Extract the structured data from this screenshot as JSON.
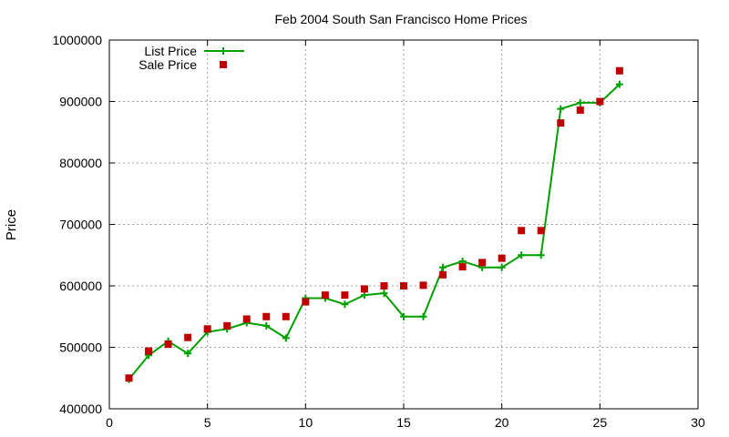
{
  "chart_data": {
    "type": "line",
    "title": "Feb 2004 South San Francisco Home Prices",
    "xlabel": "",
    "ylabel": "Price",
    "xlim": [
      0,
      30
    ],
    "ylim": [
      400000,
      1000000
    ],
    "x_ticks": [
      0,
      5,
      10,
      15,
      20,
      25,
      30
    ],
    "y_ticks": [
      400000,
      500000,
      600000,
      700000,
      800000,
      900000,
      1000000
    ],
    "grid": true,
    "legend_position": "top-left",
    "x": [
      1,
      2,
      3,
      4,
      5,
      6,
      7,
      8,
      9,
      10,
      11,
      12,
      13,
      14,
      15,
      16,
      17,
      18,
      19,
      20,
      21,
      22,
      23,
      24,
      25,
      26
    ],
    "series": [
      {
        "name": "List Price",
        "style": "line+cross",
        "color": "#00a000",
        "values": [
          448000,
          487000,
          510000,
          490000,
          525000,
          530000,
          540000,
          535000,
          515000,
          580000,
          580000,
          570000,
          585000,
          588000,
          550000,
          550000,
          630000,
          640000,
          630000,
          630000,
          650000,
          650000,
          888000,
          898000,
          898000,
          928000
        ]
      },
      {
        "name": "Sale Price",
        "style": "square",
        "color": "#c00000",
        "values": [
          450000,
          494000,
          505000,
          516000,
          530000,
          535000,
          546000,
          550000,
          550000,
          574000,
          585000,
          585000,
          595000,
          600000,
          600000,
          601000,
          618000,
          631000,
          638000,
          645000,
          690000,
          690000,
          865000,
          886000,
          900000,
          950000
        ]
      }
    ]
  }
}
